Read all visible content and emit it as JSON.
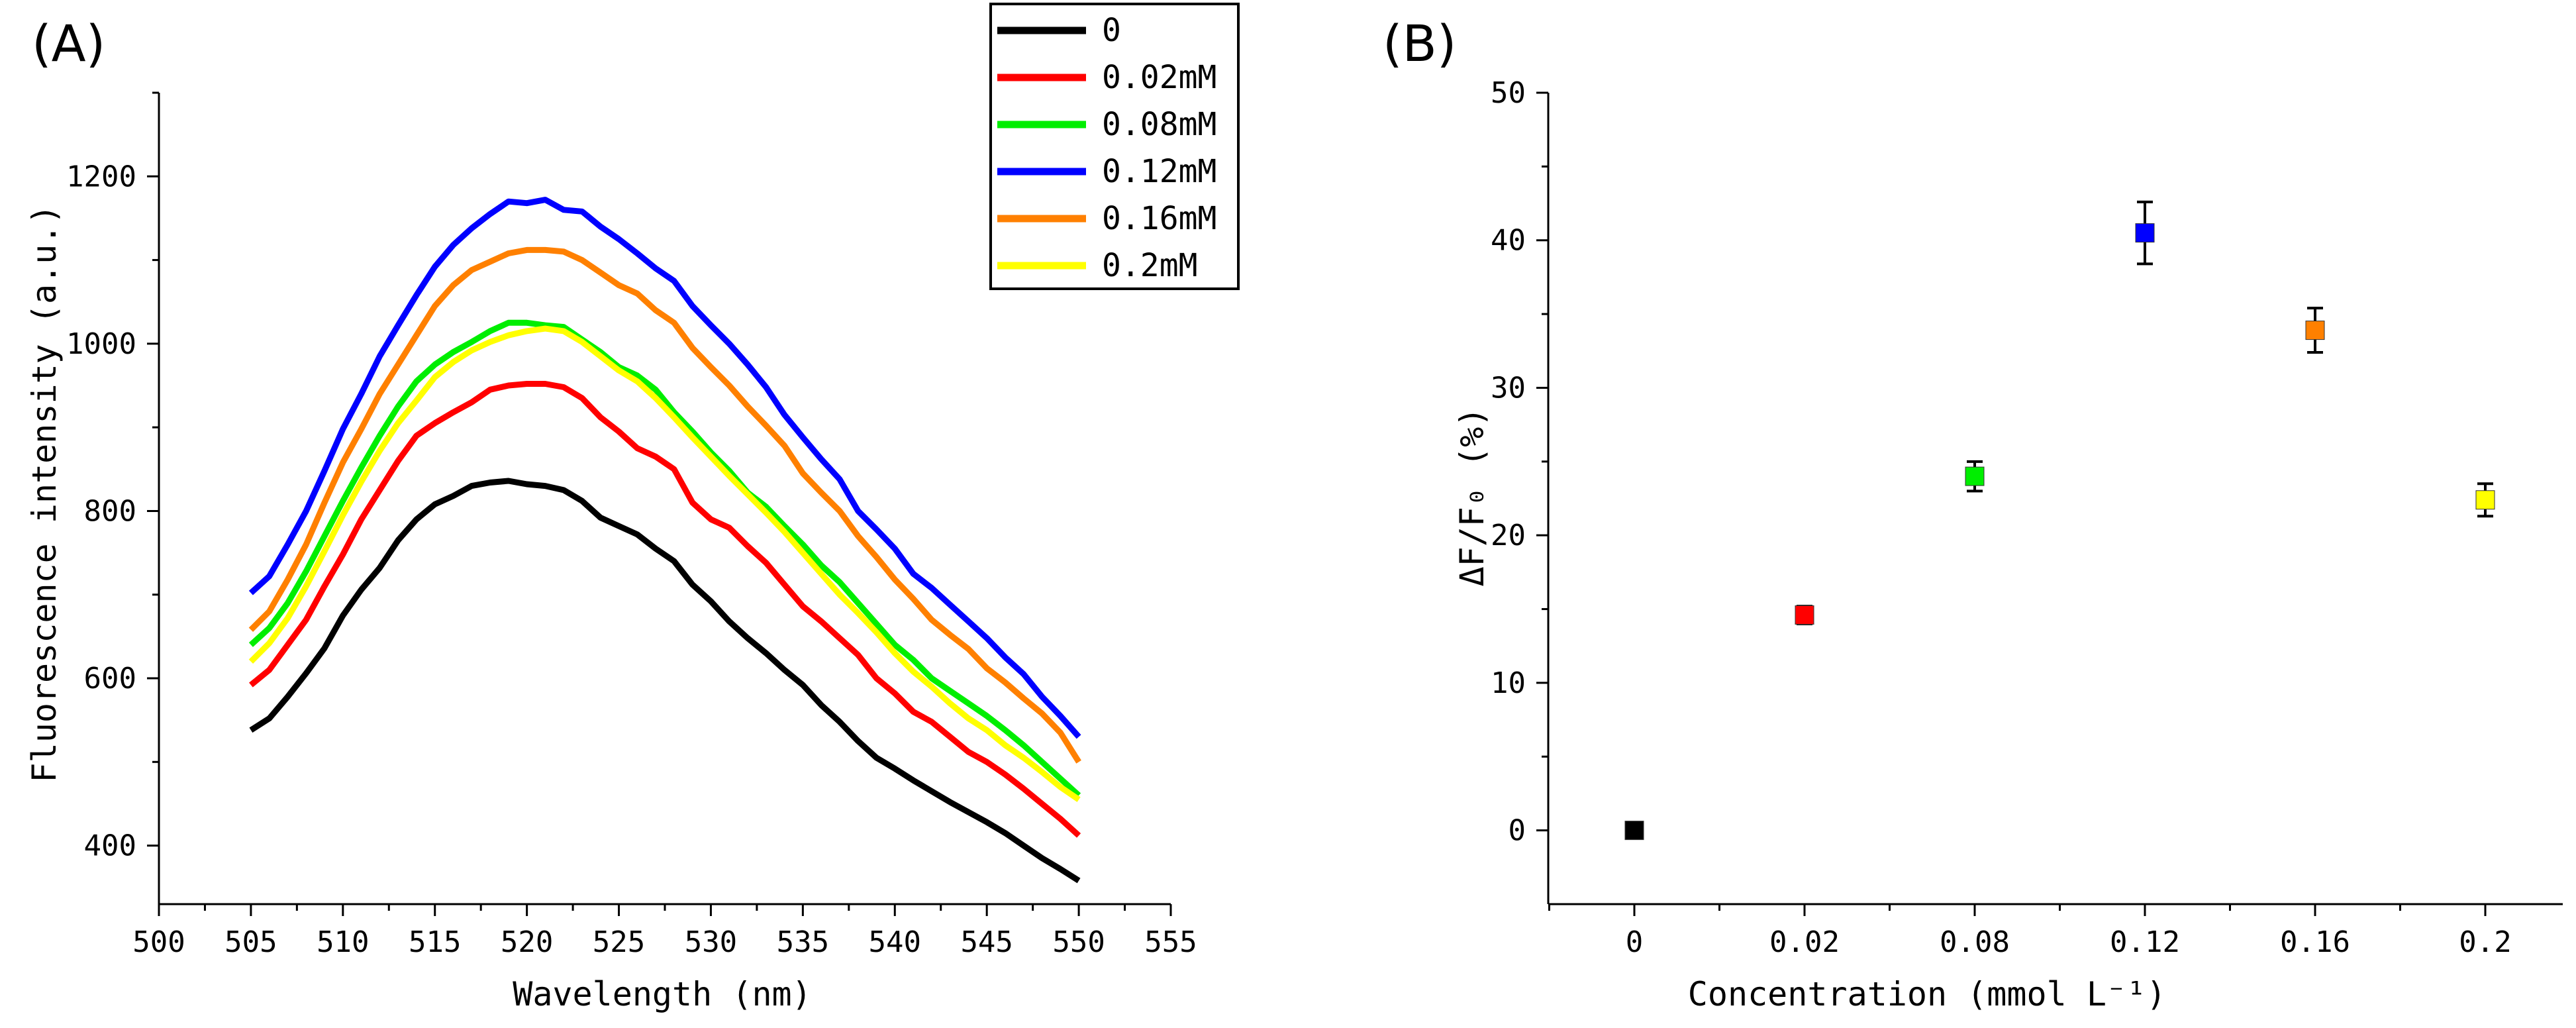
{
  "chart_data": [
    {
      "type": "line",
      "panel_label": "(A)",
      "xlabel": "Wavelength (nm)",
      "ylabel": "Fluorescence intensity (a.u.)",
      "xlim": [
        500,
        555
      ],
      "ylim": [
        330,
        1300
      ],
      "x_ticks": [
        500,
        505,
        510,
        515,
        520,
        525,
        530,
        535,
        540,
        545,
        550,
        555
      ],
      "y_ticks": [
        400,
        600,
        800,
        1000,
        1200
      ],
      "legend_position": "top-right",
      "x": [
        505,
        506,
        507,
        508,
        509,
        510,
        511,
        512,
        513,
        514,
        515,
        516,
        517,
        518,
        519,
        520,
        521,
        522,
        523,
        524,
        525,
        526,
        527,
        528,
        529,
        530,
        531,
        532,
        533,
        534,
        535,
        536,
        537,
        538,
        539,
        540,
        541,
        542,
        543,
        544,
        545,
        546,
        547,
        548,
        549,
        550
      ],
      "series": [
        {
          "name": "0",
          "color": "#000000",
          "values": [
            538,
            552,
            578,
            606,
            636,
            675,
            706,
            732,
            765,
            790,
            808,
            818,
            830,
            834,
            836,
            832,
            830,
            825,
            812,
            792,
            782,
            772,
            755,
            740,
            712,
            692,
            668,
            648,
            630,
            610,
            592,
            568,
            548,
            525,
            505,
            492,
            478,
            465,
            452,
            440,
            428,
            415,
            400,
            385,
            372,
            358
          ]
        },
        {
          "name": "0.02mM",
          "color": "#ff0000",
          "values": [
            592,
            610,
            640,
            670,
            710,
            748,
            790,
            825,
            860,
            890,
            905,
            918,
            930,
            945,
            950,
            952,
            952,
            948,
            935,
            912,
            895,
            875,
            865,
            850,
            810,
            790,
            780,
            758,
            738,
            712,
            686,
            668,
            648,
            628,
            600,
            582,
            560,
            548,
            530,
            512,
            500,
            485,
            468,
            450,
            432,
            412
          ]
        },
        {
          "name": "0.08mM",
          "color": "#00ee00",
          "values": [
            640,
            660,
            690,
            728,
            770,
            812,
            852,
            890,
            925,
            955,
            975,
            990,
            1002,
            1015,
            1025,
            1025,
            1022,
            1020,
            1005,
            990,
            972,
            962,
            945,
            918,
            895,
            870,
            848,
            822,
            805,
            782,
            760,
            735,
            715,
            690,
            665,
            640,
            622,
            600,
            585,
            570,
            555,
            538,
            520,
            500,
            480,
            460
          ]
        },
        {
          "name": "0.12mM",
          "color": "#0000ff",
          "values": [
            702,
            722,
            760,
            800,
            848,
            898,
            940,
            985,
            1022,
            1058,
            1092,
            1118,
            1138,
            1155,
            1170,
            1168,
            1172,
            1160,
            1158,
            1140,
            1125,
            1108,
            1090,
            1075,
            1045,
            1022,
            1000,
            975,
            948,
            915,
            888,
            862,
            838,
            800,
            778,
            755,
            725,
            708,
            688,
            668,
            648,
            625,
            605,
            578,
            555,
            530
          ]
        },
        {
          "name": "0.16mM",
          "color": "#ff8000",
          "values": [
            658,
            680,
            718,
            760,
            810,
            858,
            898,
            940,
            975,
            1010,
            1045,
            1070,
            1088,
            1098,
            1108,
            1112,
            1112,
            1110,
            1100,
            1085,
            1070,
            1060,
            1040,
            1025,
            995,
            972,
            950,
            925,
            902,
            878,
            845,
            822,
            800,
            770,
            745,
            718,
            695,
            670,
            652,
            635,
            612,
            595,
            576,
            558,
            535,
            500
          ]
        },
        {
          "name": "0.2mM",
          "color": "#ffff00",
          "values": [
            620,
            642,
            672,
            710,
            752,
            795,
            835,
            872,
            905,
            932,
            960,
            978,
            992,
            1002,
            1010,
            1015,
            1018,
            1015,
            1002,
            985,
            968,
            955,
            935,
            912,
            888,
            865,
            842,
            820,
            798,
            775,
            750,
            725,
            700,
            678,
            655,
            630,
            608,
            590,
            570,
            552,
            538,
            520,
            505,
            488,
            470,
            455
          ]
        }
      ]
    },
    {
      "type": "scatter",
      "panel_label": "(B)",
      "xlabel": "Concentration (mmol L⁻¹)",
      "ylabel": "ΔF/F₀ (%)",
      "ylim": [
        -5,
        50
      ],
      "y_ticks": [
        0,
        10,
        20,
        30,
        40,
        50
      ],
      "categories": [
        "0",
        "0.02",
        "0.08",
        "0.12",
        "0.16",
        "0.2"
      ],
      "values": [
        0,
        14.6,
        24,
        40.5,
        33.9,
        22.4
      ],
      "errors": [
        0.3,
        0.6,
        1.0,
        2.1,
        1.5,
        1.1
      ],
      "colors": [
        "#000000",
        "#ff0000",
        "#00ee00",
        "#0000ff",
        "#ff8000",
        "#ffff00"
      ]
    }
  ]
}
